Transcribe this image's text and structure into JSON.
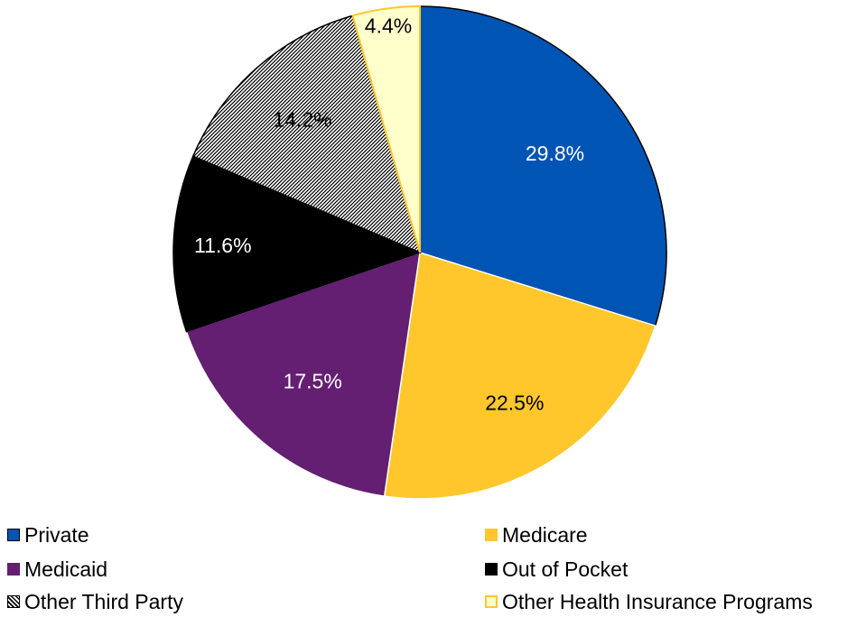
{
  "chart_data": {
    "type": "pie",
    "title": "",
    "slices": [
      {
        "label": "Private",
        "value": 29.8,
        "display": "29.8%",
        "color": "#0054B4",
        "label_color": "#ffffff",
        "pattern": "solid"
      },
      {
        "label": "Medicare",
        "value": 22.5,
        "display": "22.5%",
        "color": "#FFC72C",
        "label_color": "#000000",
        "pattern": "solid"
      },
      {
        "label": "Medicaid",
        "value": 17.5,
        "display": "17.5%",
        "color": "#641E72",
        "label_color": "#ffffff",
        "pattern": "solid"
      },
      {
        "label": "Out of Pocket",
        "value": 11.6,
        "display": "11.6%",
        "color": "#000000",
        "label_color": "#ffffff",
        "pattern": "solid"
      },
      {
        "label": "Other Third Party",
        "value": 14.2,
        "display": "14.2%",
        "color": "#000000",
        "label_color": "#000000",
        "pattern": "hatch"
      },
      {
        "label": "Other Health Insurance Programs",
        "value": 4.4,
        "display": "4.4%",
        "color": "#FFFFCC",
        "label_color": "#000000",
        "pattern": "solid",
        "border": "#FFC72C"
      }
    ],
    "legend": {
      "placement": "bottom",
      "items": [
        "Private",
        "Medicare",
        "Medicaid",
        "Out of Pocket",
        "Other Third Party",
        "Other Health Insurance Programs"
      ]
    }
  }
}
